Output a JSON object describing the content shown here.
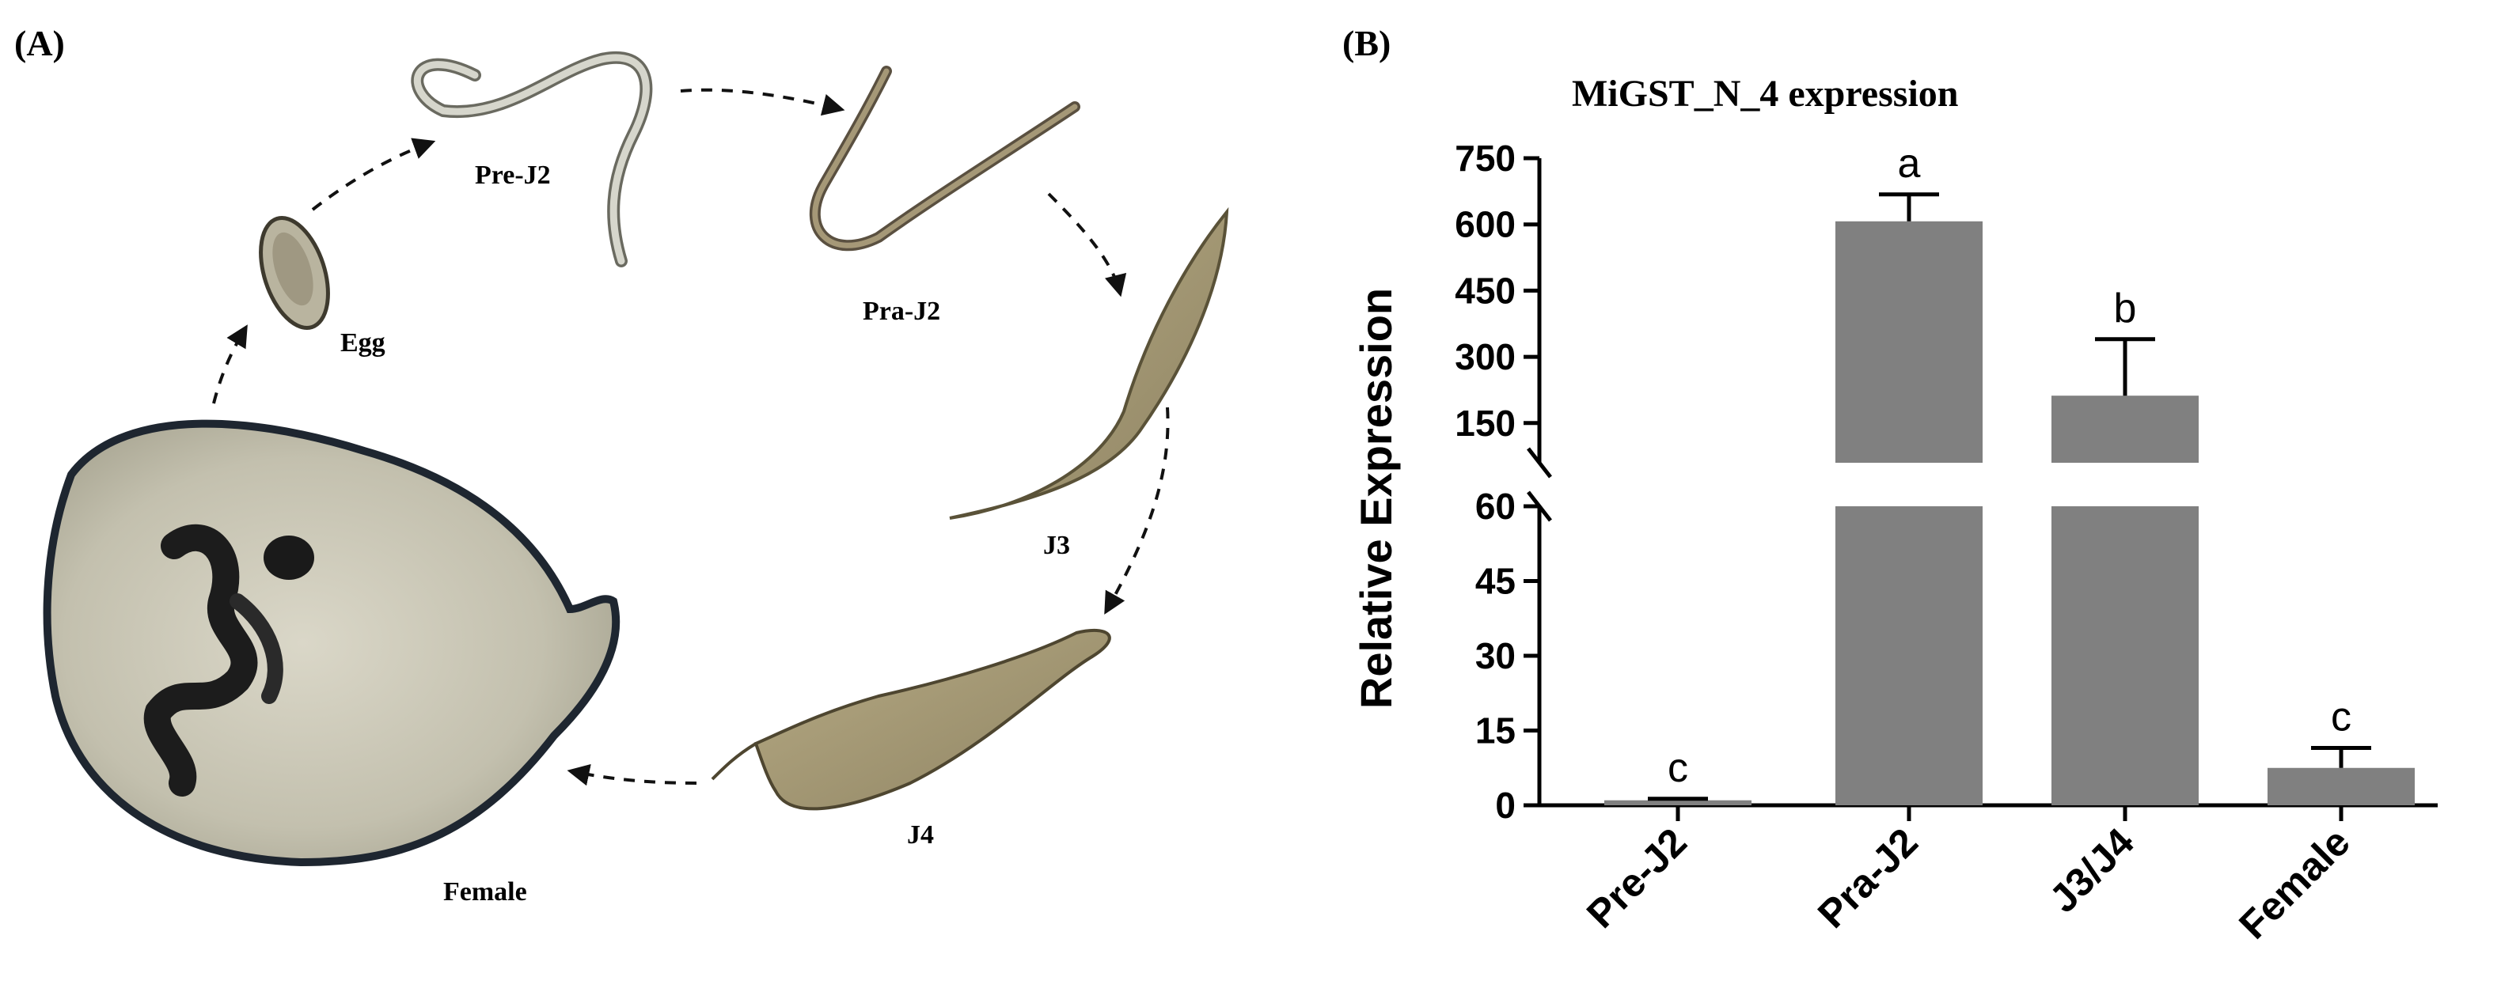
{
  "panel_a": {
    "letter": "(A)",
    "stages": {
      "egg": "Egg",
      "pre_j2": "Pre-J2",
      "pra_j2": "Pra-J2",
      "j3": "J3",
      "j4": "J4",
      "female": "Female"
    }
  },
  "panel_b": {
    "letter": "(B)"
  },
  "chart_data": {
    "type": "bar",
    "title": "MiGST_N_4 expression",
    "xlabel": "",
    "ylabel": "Relative Expression",
    "categories": [
      "Pre-J2",
      "Pra-J2",
      "J3/J4",
      "Female"
    ],
    "values": [
      1,
      607,
      212,
      7.5
    ],
    "error_upper": [
      1.3,
      668,
      340,
      11.5
    ],
    "significance": [
      "c",
      "a",
      "b",
      "c"
    ],
    "y_axis": {
      "broken": true,
      "lower_segment": {
        "range": [
          0,
          60
        ],
        "ticks": [
          "0",
          "15",
          "30",
          "45",
          "60"
        ]
      },
      "upper_segment": {
        "range": [
          60,
          750
        ],
        "ticks": [
          "150",
          "300",
          "450",
          "600",
          "750"
        ]
      }
    },
    "colors": {
      "bar": "#808080",
      "axis": "#000000"
    },
    "grid": false,
    "legend": "none"
  }
}
